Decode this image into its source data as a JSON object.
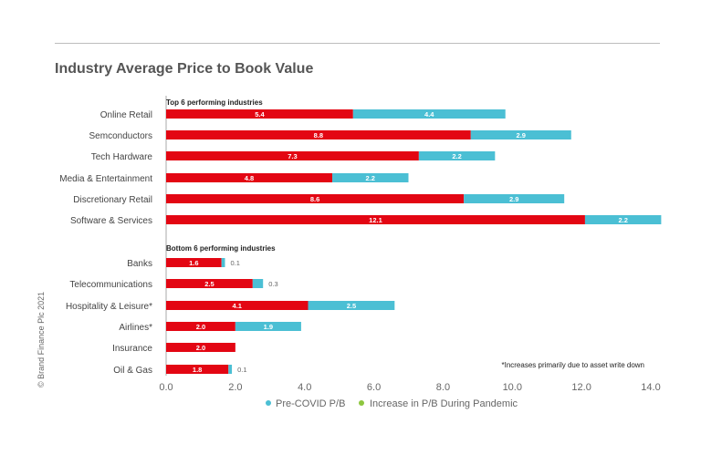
{
  "title": "Industry Average Price to Book Value",
  "copyright": "© Brand Finance Plc 2021",
  "chart_data": {
    "type": "bar",
    "orientation": "horizontal",
    "stacked": true,
    "title": "Industry Average Price to Book Value",
    "groups": [
      {
        "label": "Top 6 performing industries",
        "categories": [
          "Online Retail",
          "Semconductors",
          "Tech Hardware",
          "Media & Entertainment",
          "Discretionary Retail",
          "Software & Services"
        ],
        "pre_covid": [
          5.4,
          8.8,
          7.3,
          4.8,
          8.6,
          12.1
        ],
        "increase": [
          4.4,
          2.9,
          2.2,
          2.2,
          2.9,
          2.2
        ]
      },
      {
        "label": "Bottom 6 performing industries",
        "categories": [
          "Banks",
          "Telecommunications",
          "Hospitality & Leisure*",
          "Airlines*",
          "Insurance",
          "Oil & Gas"
        ],
        "pre_covid": [
          1.6,
          2.5,
          4.1,
          2.0,
          2.0,
          1.8
        ],
        "increase": [
          0.1,
          0.3,
          2.5,
          1.9,
          null,
          0.1
        ]
      }
    ],
    "series": [
      {
        "name": "Pre-COVID P/B",
        "legend_color": "#4bbfd4",
        "bar_color": "#e30613"
      },
      {
        "name": "Increase in P/B During Pandemic",
        "legend_color": "#8dc63f",
        "bar_color": "#4bbfd4"
      }
    ],
    "xlim": [
      0,
      14
    ],
    "xticks": [
      "0.0",
      "2.0",
      "4.0",
      "6.0",
      "8.0",
      "10.0",
      "12.0",
      "14.0"
    ],
    "annotation": "*Increases primarily due to asset write down",
    "legend_position": "bottom",
    "grid": false
  }
}
